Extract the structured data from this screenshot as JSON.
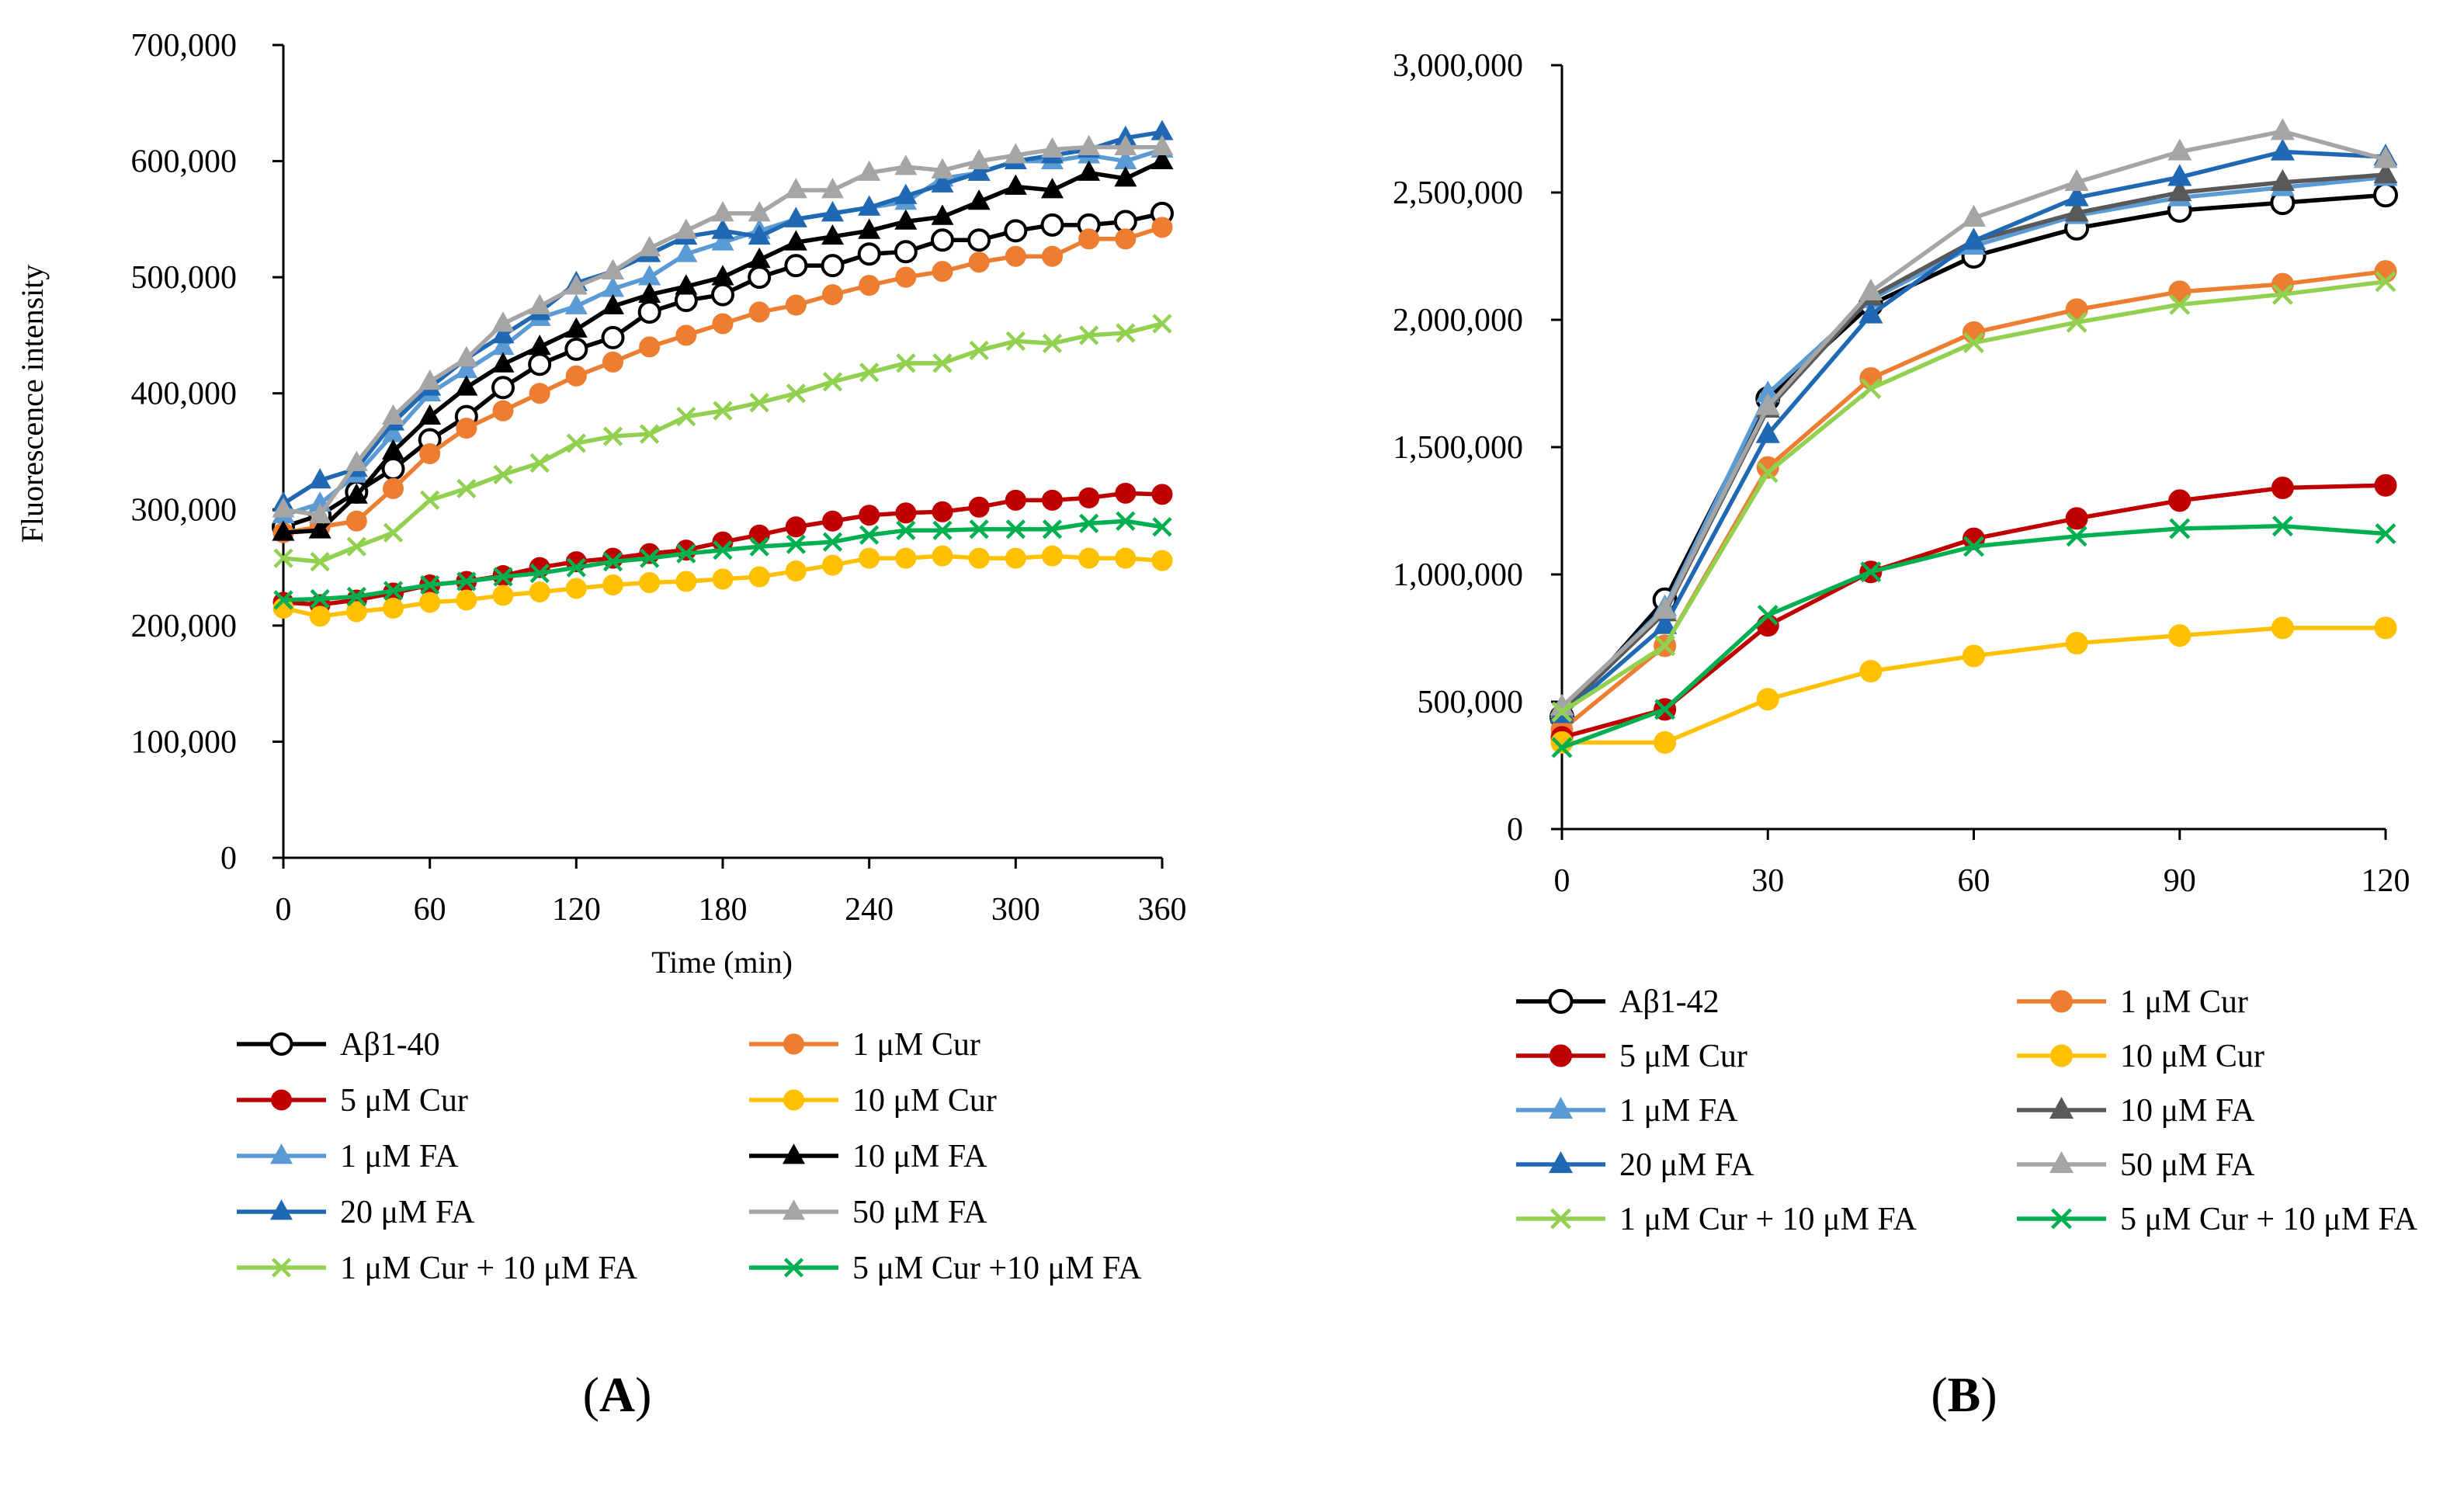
{
  "chart_data": [
    {
      "type": "line",
      "panel_label": "A",
      "xlabel": "Time (min)",
      "ylabel": "Fluorescence intensity",
      "xlim": [
        0,
        360
      ],
      "ylim": [
        0,
        700000
      ],
      "xticks": [
        0,
        60,
        120,
        180,
        240,
        300,
        360
      ],
      "xtick_labels": [
        "0",
        "60",
        "120",
        "180",
        "240",
        "300",
        "360"
      ],
      "yticks": [
        0,
        100000,
        200000,
        300000,
        400000,
        500000,
        600000,
        700000
      ],
      "ytick_labels": [
        "0",
        "100,000",
        "200,000",
        "300,000",
        "400,000",
        "500,000",
        "600,000",
        "700,000"
      ],
      "x": [
        0,
        15,
        30,
        45,
        60,
        75,
        90,
        105,
        120,
        135,
        150,
        165,
        180,
        195,
        210,
        225,
        240,
        255,
        270,
        285,
        300,
        315,
        330,
        345,
        360
      ],
      "legend_position": "bottom",
      "series": [
        {
          "name": "Aβ1-40",
          "color": "#000000",
          "marker": "circle-open",
          "values": [
            285000,
            295000,
            315000,
            335000,
            360000,
            380000,
            405000,
            425000,
            438000,
            448000,
            470000,
            480000,
            485000,
            500000,
            510000,
            510000,
            520000,
            522000,
            532000,
            532000,
            540000,
            545000,
            545000,
            548000,
            555000
          ]
        },
        {
          "name": "1 μM Cur",
          "color": "#ED7D31",
          "marker": "circle",
          "values": [
            280000,
            285000,
            290000,
            318000,
            348000,
            370000,
            385000,
            400000,
            415000,
            427000,
            440000,
            450000,
            460000,
            470000,
            476000,
            485000,
            493000,
            500000,
            505000,
            513000,
            518000,
            518000,
            533000,
            533000,
            543000
          ]
        },
        {
          "name": "5 μM Cur",
          "color": "#C00000",
          "marker": "circle",
          "values": [
            220000,
            218000,
            222000,
            228000,
            235000,
            238000,
            243000,
            250000,
            255000,
            258000,
            262000,
            265000,
            272000,
            278000,
            285000,
            290000,
            295000,
            297000,
            298000,
            302000,
            308000,
            308000,
            310000,
            314000,
            313000
          ]
        },
        {
          "name": "10 μM Cur",
          "color": "#FFC000",
          "marker": "circle",
          "values": [
            215000,
            208000,
            212000,
            215000,
            220000,
            222000,
            226000,
            229000,
            232000,
            235000,
            237000,
            238000,
            240000,
            242000,
            247000,
            252000,
            258000,
            258000,
            260000,
            258000,
            258000,
            260000,
            258000,
            258000,
            256000
          ]
        },
        {
          "name": "1 μM FA",
          "color": "#5B9BD5",
          "marker": "triangle",
          "values": [
            295000,
            305000,
            330000,
            365000,
            400000,
            420000,
            440000,
            465000,
            475000,
            490000,
            500000,
            520000,
            530000,
            540000,
            550000,
            555000,
            560000,
            565000,
            585000,
            590000,
            600000,
            600000,
            605000,
            600000,
            610000
          ]
        },
        {
          "name": "10 μM FA",
          "color": "#000000",
          "marker": "triangle",
          "values": [
            280000,
            282000,
            312000,
            350000,
            380000,
            405000,
            425000,
            440000,
            455000,
            475000,
            485000,
            492000,
            500000,
            515000,
            530000,
            535000,
            540000,
            548000,
            552000,
            565000,
            578000,
            575000,
            590000,
            585000,
            600000
          ]
        },
        {
          "name": "20 μM FA",
          "color": "#1F68B4",
          "marker": "triangle",
          "values": [
            305000,
            325000,
            335000,
            375000,
            405000,
            430000,
            450000,
            470000,
            495000,
            505000,
            520000,
            535000,
            540000,
            535000,
            550000,
            555000,
            560000,
            570000,
            580000,
            590000,
            600000,
            605000,
            610000,
            620000,
            625000
          ]
        },
        {
          "name": "50 μM FA",
          "color": "#A5A5A5",
          "marker": "triangle",
          "values": [
            300000,
            295000,
            340000,
            380000,
            410000,
            430000,
            460000,
            475000,
            492000,
            505000,
            525000,
            540000,
            555000,
            555000,
            575000,
            575000,
            590000,
            595000,
            592000,
            600000,
            605000,
            610000,
            612000,
            612000,
            612000
          ]
        },
        {
          "name": "1 μM Cur + 10 μM FA",
          "color": "#92D050",
          "marker": "x",
          "values": [
            258000,
            255000,
            268000,
            280000,
            308000,
            318000,
            330000,
            340000,
            357000,
            363000,
            365000,
            380000,
            385000,
            392000,
            400000,
            410000,
            418000,
            426000,
            426000,
            437000,
            445000,
            443000,
            450000,
            452000,
            460000
          ]
        },
        {
          "name": "5 μM Cur +10 μM FA",
          "color": "#00B050",
          "marker": "x",
          "values": [
            222000,
            223000,
            225000,
            230000,
            235000,
            238000,
            242000,
            245000,
            250000,
            255000,
            258000,
            262000,
            265000,
            268000,
            270000,
            272000,
            278000,
            282000,
            282000,
            283000,
            283000,
            283000,
            288000,
            290000,
            285000
          ]
        }
      ]
    },
    {
      "type": "line",
      "panel_label": "B",
      "xlabel": "",
      "ylabel": "",
      "xlim": [
        0,
        120
      ],
      "ylim": [
        0,
        3000000
      ],
      "xticks": [
        0,
        30,
        60,
        90,
        120
      ],
      "xtick_labels": [
        "0",
        "30",
        "60",
        "90",
        "120"
      ],
      "yticks": [
        0,
        500000,
        1000000,
        1500000,
        2000000,
        2500000,
        3000000
      ],
      "ytick_labels": [
        "0",
        "500,000",
        "1,000,000",
        "1,500,000",
        "2,000,000",
        "2,500,000",
        "3,000,000"
      ],
      "x": [
        0,
        15,
        30,
        45,
        60,
        75,
        90,
        105,
        120
      ],
      "legend_position": "bottom",
      "series": [
        {
          "name": "Aβ1-42",
          "color": "#000000",
          "marker": "circle-open",
          "values": [
            440000,
            900000,
            1690000,
            2060000,
            2250000,
            2360000,
            2430000,
            2460000,
            2490000
          ]
        },
        {
          "name": "1 μM Cur",
          "color": "#ED7D31",
          "marker": "circle",
          "values": [
            390000,
            720000,
            1420000,
            1770000,
            1950000,
            2040000,
            2110000,
            2140000,
            2190000
          ]
        },
        {
          "name": "5 μM Cur",
          "color": "#C00000",
          "marker": "circle",
          "values": [
            360000,
            470000,
            800000,
            1010000,
            1140000,
            1220000,
            1290000,
            1340000,
            1350000
          ]
        },
        {
          "name": "10 μM Cur",
          "color": "#FFC000",
          "marker": "circle",
          "values": [
            340000,
            340000,
            510000,
            620000,
            680000,
            730000,
            760000,
            790000,
            790000
          ]
        },
        {
          "name": "1 μM FA",
          "color": "#5B9BD5",
          "marker": "triangle",
          "values": [
            470000,
            870000,
            1710000,
            2080000,
            2290000,
            2410000,
            2480000,
            2520000,
            2560000
          ]
        },
        {
          "name": "10 μM FA",
          "color": "#595959",
          "marker": "triangle",
          "values": [
            460000,
            850000,
            1650000,
            2090000,
            2310000,
            2420000,
            2500000,
            2540000,
            2570000
          ]
        },
        {
          "name": "20 μM FA",
          "color": "#1F68B4",
          "marker": "triangle",
          "values": [
            450000,
            800000,
            1550000,
            2020000,
            2310000,
            2480000,
            2560000,
            2660000,
            2640000
          ]
        },
        {
          "name": "50 μM FA",
          "color": "#A5A5A5",
          "marker": "triangle",
          "values": [
            480000,
            860000,
            1660000,
            2110000,
            2400000,
            2540000,
            2660000,
            2740000,
            2630000
          ]
        },
        {
          "name": "1 μM Cur + 10 μM FA",
          "color": "#92D050",
          "marker": "x",
          "values": [
            460000,
            720000,
            1400000,
            1730000,
            1910000,
            1990000,
            2060000,
            2100000,
            2150000
          ]
        },
        {
          "name": "5 μM Cur + 10 μM FA",
          "color": "#00B050",
          "marker": "x",
          "values": [
            320000,
            470000,
            840000,
            1010000,
            1110000,
            1150000,
            1180000,
            1190000,
            1160000
          ]
        }
      ]
    }
  ]
}
